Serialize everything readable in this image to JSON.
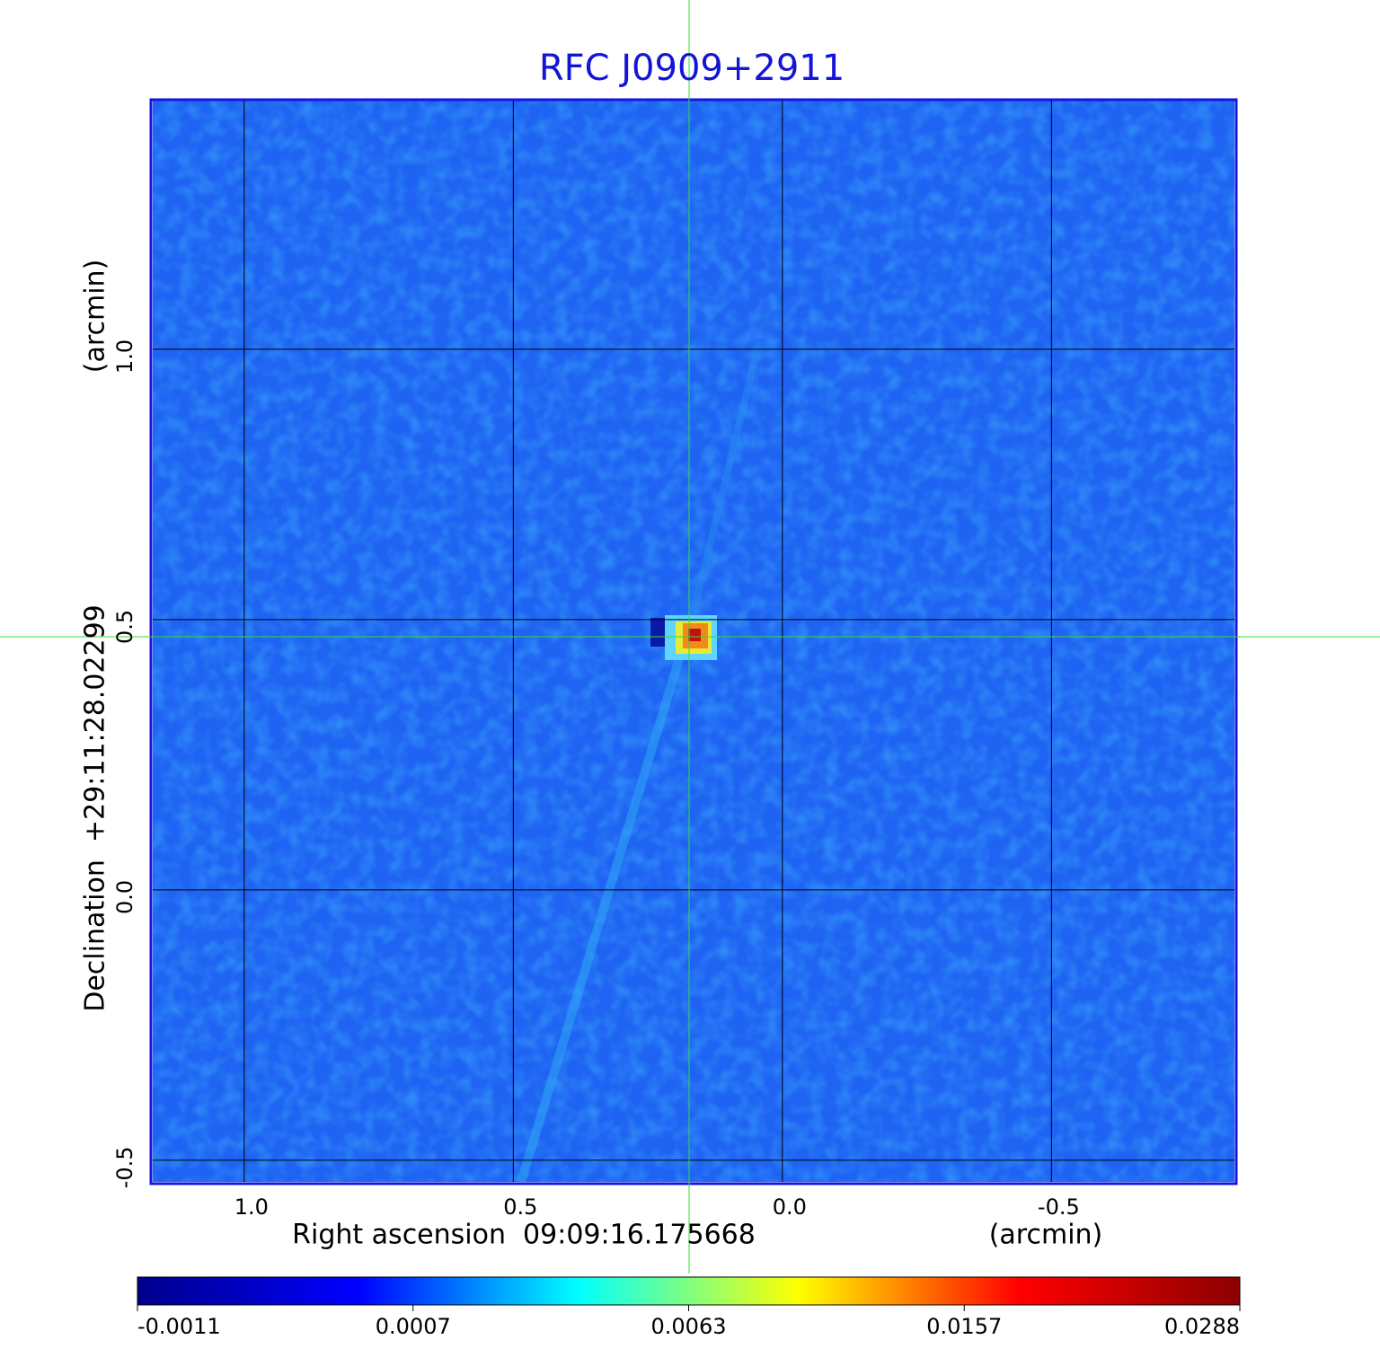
{
  "chart_data": {
    "type": "image",
    "title": "RFC J0909+2911",
    "x_label": "Right ascension  09:09:16.175668",
    "x_unit": "(arcmin)",
    "y_label": "Declination  +29:11:28.02299",
    "y_unit": "(arcmin)",
    "xlim": [
      1.17,
      -0.84
    ],
    "ylim": [
      -0.54,
      1.46
    ],
    "xticks": [
      {
        "value": 1,
        "label": "1.0"
      },
      0.5,
      {
        "value": 0,
        "label": "0.0"
      },
      -0.5
    ],
    "yticks": [
      -0.5,
      {
        "value": 0,
        "label": "0.0"
      },
      0.5,
      {
        "value": 1,
        "label": "1.0"
      }
    ],
    "grid": true,
    "colorbar": {
      "ticks": [
        -0.0011,
        0.0007,
        0.0063,
        0.0157,
        0.0288
      ],
      "colors": [
        "#00008b",
        "#0000ff",
        "#00ffff",
        "#ffff00",
        "#ff0000",
        "#8b0000"
      ]
    }
  }
}
